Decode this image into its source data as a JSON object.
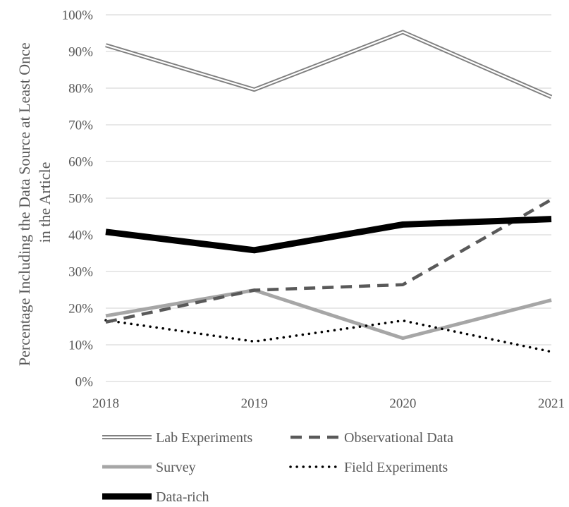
{
  "chart_data": {
    "type": "line",
    "title": "",
    "xlabel": "",
    "ylabel_lines": [
      "Percentage Including the Data Source at Least Once",
      "in the Article"
    ],
    "x": [
      "2018",
      "2019",
      "2020",
      "2021"
    ],
    "ylim": [
      0,
      100
    ],
    "yticks": [
      "0%",
      "10%",
      "20%",
      "30%",
      "40%",
      "50%",
      "60%",
      "70%",
      "80%",
      "90%",
      "100%"
    ],
    "grid": true,
    "legend_position": "bottom",
    "series": [
      {
        "name": "Lab Experiments",
        "values": [
          91.7,
          79.6,
          95.3,
          77.6
        ],
        "style": "double",
        "color": "#7f7f7f"
      },
      {
        "name": "Observational Data",
        "values": [
          16.2,
          24.9,
          26.4,
          49.6
        ],
        "style": "dashed",
        "color": "#595959"
      },
      {
        "name": "Survey",
        "values": [
          17.9,
          24.9,
          11.8,
          22.2
        ],
        "style": "solid",
        "color": "#a6a6a6"
      },
      {
        "name": "Field Experiments",
        "values": [
          16.7,
          10.9,
          16.6,
          8.1
        ],
        "style": "dotted",
        "color": "#000000"
      },
      {
        "name": "Data-rich",
        "values": [
          40.8,
          35.8,
          42.8,
          44.3
        ],
        "style": "thick",
        "color": "#000000"
      }
    ]
  }
}
